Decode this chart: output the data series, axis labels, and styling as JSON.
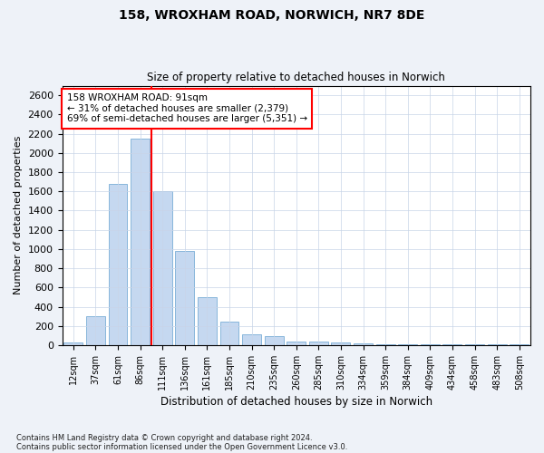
{
  "title1": "158, WROXHAM ROAD, NORWICH, NR7 8DE",
  "title2": "Size of property relative to detached houses in Norwich",
  "xlabel": "Distribution of detached houses by size in Norwich",
  "ylabel": "Number of detached properties",
  "categories": [
    "12sqm",
    "37sqm",
    "61sqm",
    "86sqm",
    "111sqm",
    "136sqm",
    "161sqm",
    "185sqm",
    "210sqm",
    "235sqm",
    "260sqm",
    "285sqm",
    "310sqm",
    "334sqm",
    "359sqm",
    "384sqm",
    "409sqm",
    "434sqm",
    "458sqm",
    "483sqm",
    "508sqm"
  ],
  "values": [
    25,
    300,
    1680,
    2150,
    1600,
    980,
    500,
    245,
    115,
    90,
    40,
    40,
    25,
    20,
    10,
    10,
    5,
    5,
    5,
    5,
    5
  ],
  "bar_color": "#c5d8f0",
  "bar_edge_color": "#7aaed6",
  "vline_color": "red",
  "vline_x": 3.5,
  "annotation_text": "158 WROXHAM ROAD: 91sqm\n← 31% of detached houses are smaller (2,379)\n69% of semi-detached houses are larger (5,351) →",
  "annotation_box_color": "white",
  "annotation_box_edge": "red",
  "ylim": [
    0,
    2700
  ],
  "yticks": [
    0,
    200,
    400,
    600,
    800,
    1000,
    1200,
    1400,
    1600,
    1800,
    2000,
    2200,
    2400,
    2600
  ],
  "footer1": "Contains HM Land Registry data © Crown copyright and database right 2024.",
  "footer2": "Contains public sector information licensed under the Open Government Licence v3.0.",
  "bg_color": "#eef2f8",
  "plot_bg_color": "#ffffff"
}
